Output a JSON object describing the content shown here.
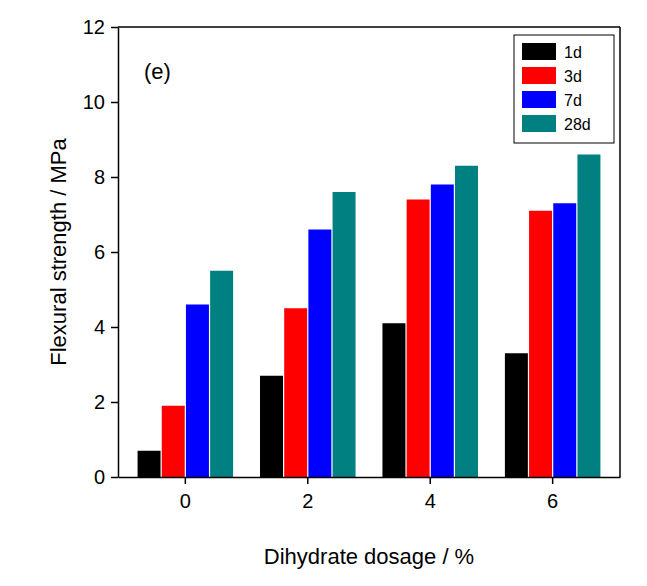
{
  "chart_data": {
    "type": "bar",
    "annotations": [
      "(e)"
    ],
    "x_label": "Dihydrate dosage / %",
    "y_label": "Flexural strength / MPa",
    "categories": [
      "0",
      "2",
      "4",
      "6"
    ],
    "series": [
      {
        "name": "1d",
        "color": "#000000",
        "values": [
          0.7,
          2.7,
          4.1,
          3.3
        ]
      },
      {
        "name": "3d",
        "color": "#ff0000",
        "values": [
          1.9,
          4.5,
          7.4,
          7.1
        ]
      },
      {
        "name": "7d",
        "color": "#0000ff",
        "values": [
          4.6,
          6.6,
          7.8,
          7.3
        ]
      },
      {
        "name": "28d",
        "color": "#008080",
        "values": [
          5.5,
          7.6,
          8.3,
          8.6
        ]
      }
    ],
    "ylim": [
      0,
      12
    ],
    "yticks": [
      0,
      2,
      4,
      6,
      8,
      10,
      12
    ],
    "legend": "upper right",
    "grid": false
  }
}
